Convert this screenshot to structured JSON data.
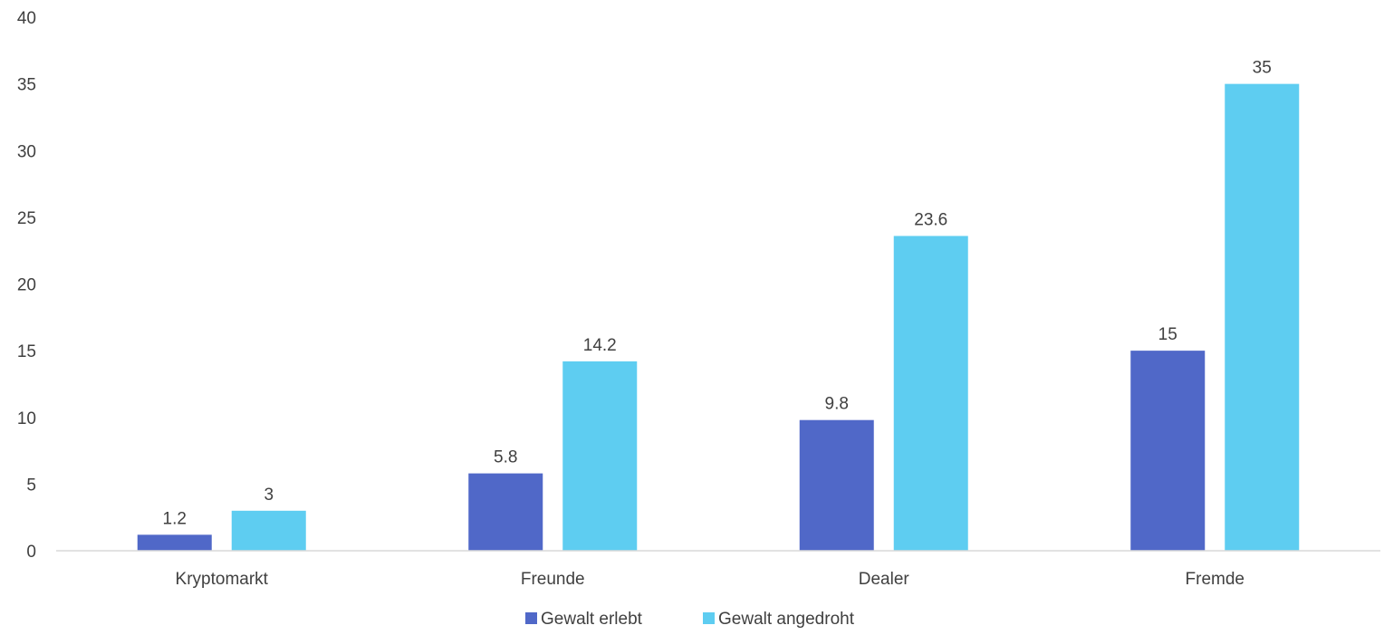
{
  "chart_data": {
    "type": "bar",
    "categories": [
      "Kryptomarkt",
      "Freunde",
      "Dealer",
      "Fremde"
    ],
    "series": [
      {
        "name": "Gewalt erlebt",
        "values": [
          1.2,
          5.8,
          9.8,
          15
        ],
        "labels": [
          "1.2",
          "5.8",
          "9.8",
          "15"
        ],
        "color": "#5068C8"
      },
      {
        "name": "Gewalt angedroht",
        "values": [
          3,
          14.2,
          23.6,
          35
        ],
        "labels": [
          "3",
          "14.2",
          "23.6",
          "35"
        ],
        "color": "#5ECDF1"
      }
    ],
    "ylim": [
      0,
      40
    ],
    "yticks": [
      "0",
      "5",
      "10",
      "15",
      "20",
      "25",
      "30",
      "35",
      "40"
    ],
    "grid": false,
    "legend_position": "bottom",
    "title": "",
    "xlabel": "",
    "ylabel": ""
  }
}
